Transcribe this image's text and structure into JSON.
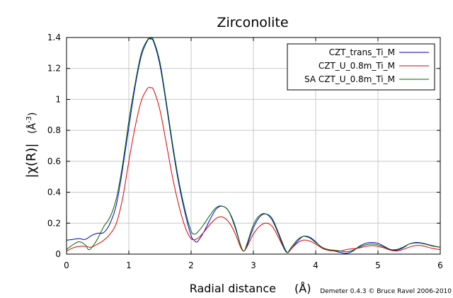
{
  "chart_data": {
    "type": "line",
    "title": "Zirconolite",
    "xlabel": "Radial distance",
    "xlabel_unit": "(Å)",
    "ylabel_main": "|χ(R)|",
    "ylabel_unit": "(Å",
    "ylabel_unit_exp": "-3",
    "ylabel_unit_close": ")",
    "xlim": [
      0,
      6
    ],
    "ylim": [
      0,
      1.4
    ],
    "xticks": [
      0,
      1,
      2,
      3,
      4,
      5,
      6
    ],
    "xtick_labels": [
      "0",
      "1",
      "2",
      "3",
      "4",
      "5",
      "6"
    ],
    "yticks": [
      0,
      0.2,
      0.4,
      0.6,
      0.8,
      1.0,
      1.2,
      1.4
    ],
    "ytick_labels": [
      "0",
      "0.2",
      "0.4",
      "0.6",
      "0.8",
      "1",
      "1.2",
      "1.4"
    ],
    "grid": true,
    "legend_position": "top-right",
    "series": [
      {
        "name": "CZT_trans_Ti_M",
        "color": "#0000cc",
        "points": [
          [
            0,
            0.09
          ],
          [
            0.1,
            0.095
          ],
          [
            0.2,
            0.1
          ],
          [
            0.3,
            0.095
          ],
          [
            0.4,
            0.12
          ],
          [
            0.5,
            0.135
          ],
          [
            0.6,
            0.14
          ],
          [
            0.7,
            0.2
          ],
          [
            0.8,
            0.32
          ],
          [
            0.9,
            0.55
          ],
          [
            1.0,
            0.82
          ],
          [
            1.1,
            1.08
          ],
          [
            1.2,
            1.28
          ],
          [
            1.3,
            1.38
          ],
          [
            1.35,
            1.39
          ],
          [
            1.4,
            1.37
          ],
          [
            1.5,
            1.22
          ],
          [
            1.6,
            0.97
          ],
          [
            1.7,
            0.7
          ],
          [
            1.8,
            0.46
          ],
          [
            1.9,
            0.27
          ],
          [
            2.0,
            0.12
          ],
          [
            2.05,
            0.09
          ],
          [
            2.1,
            0.08
          ],
          [
            2.2,
            0.14
          ],
          [
            2.3,
            0.22
          ],
          [
            2.4,
            0.29
          ],
          [
            2.5,
            0.31
          ],
          [
            2.6,
            0.28
          ],
          [
            2.7,
            0.19
          ],
          [
            2.8,
            0.05
          ],
          [
            2.85,
            0.02
          ],
          [
            2.9,
            0.06
          ],
          [
            3.0,
            0.17
          ],
          [
            3.1,
            0.24
          ],
          [
            3.2,
            0.26
          ],
          [
            3.3,
            0.23
          ],
          [
            3.4,
            0.14
          ],
          [
            3.5,
            0.04
          ],
          [
            3.55,
            0.01
          ],
          [
            3.6,
            0.03
          ],
          [
            3.7,
            0.08
          ],
          [
            3.8,
            0.115
          ],
          [
            3.9,
            0.11
          ],
          [
            4.0,
            0.08
          ],
          [
            4.1,
            0.04
          ],
          [
            4.2,
            0.025
          ],
          [
            4.3,
            0.02
          ],
          [
            4.4,
            0.01
          ],
          [
            4.5,
            0.005
          ],
          [
            4.6,
            0.02
          ],
          [
            4.7,
            0.05
          ],
          [
            4.8,
            0.07
          ],
          [
            4.9,
            0.075
          ],
          [
            5.0,
            0.07
          ],
          [
            5.1,
            0.05
          ],
          [
            5.2,
            0.03
          ],
          [
            5.3,
            0.025
          ],
          [
            5.4,
            0.04
          ],
          [
            5.5,
            0.065
          ],
          [
            5.6,
            0.075
          ],
          [
            5.7,
            0.072
          ],
          [
            5.8,
            0.062
          ],
          [
            5.9,
            0.052
          ],
          [
            6.0,
            0.045
          ]
        ]
      },
      {
        "name": "CZT_U_0.8m_Ti_M",
        "color": "#dd0000",
        "points": [
          [
            0,
            0.02
          ],
          [
            0.1,
            0.04
          ],
          [
            0.2,
            0.05
          ],
          [
            0.3,
            0.05
          ],
          [
            0.4,
            0.045
          ],
          [
            0.5,
            0.065
          ],
          [
            0.6,
            0.09
          ],
          [
            0.7,
            0.13
          ],
          [
            0.8,
            0.2
          ],
          [
            0.9,
            0.36
          ],
          [
            1.0,
            0.6
          ],
          [
            1.1,
            0.82
          ],
          [
            1.2,
            0.99
          ],
          [
            1.3,
            1.07
          ],
          [
            1.35,
            1.075
          ],
          [
            1.4,
            1.06
          ],
          [
            1.5,
            0.93
          ],
          [
            1.6,
            0.72
          ],
          [
            1.7,
            0.5
          ],
          [
            1.8,
            0.32
          ],
          [
            1.9,
            0.18
          ],
          [
            2.0,
            0.1
          ],
          [
            2.1,
            0.1
          ],
          [
            2.2,
            0.14
          ],
          [
            2.3,
            0.19
          ],
          [
            2.4,
            0.23
          ],
          [
            2.5,
            0.24
          ],
          [
            2.6,
            0.21
          ],
          [
            2.7,
            0.14
          ],
          [
            2.8,
            0.04
          ],
          [
            2.85,
            0.02
          ],
          [
            2.9,
            0.05
          ],
          [
            3.0,
            0.13
          ],
          [
            3.1,
            0.18
          ],
          [
            3.2,
            0.2
          ],
          [
            3.3,
            0.18
          ],
          [
            3.4,
            0.11
          ],
          [
            3.5,
            0.03
          ],
          [
            3.55,
            0.01
          ],
          [
            3.6,
            0.03
          ],
          [
            3.7,
            0.07
          ],
          [
            3.8,
            0.09
          ],
          [
            3.9,
            0.085
          ],
          [
            4.0,
            0.065
          ],
          [
            4.1,
            0.04
          ],
          [
            4.2,
            0.025
          ],
          [
            4.3,
            0.02
          ],
          [
            4.4,
            0.02
          ],
          [
            4.5,
            0.03
          ],
          [
            4.6,
            0.035
          ],
          [
            4.7,
            0.04
          ],
          [
            4.8,
            0.05
          ],
          [
            4.9,
            0.055
          ],
          [
            5.0,
            0.05
          ],
          [
            5.1,
            0.04
          ],
          [
            5.2,
            0.025
          ],
          [
            5.3,
            0.02
          ],
          [
            5.4,
            0.03
          ],
          [
            5.5,
            0.045
          ],
          [
            5.6,
            0.055
          ],
          [
            5.7,
            0.055
          ],
          [
            5.8,
            0.045
          ],
          [
            5.9,
            0.035
          ],
          [
            6.0,
            0.03
          ]
        ]
      },
      {
        "name": "SA CZT_U_0.8m_Ti_M",
        "color": "#006600",
        "points": [
          [
            0,
            0.03
          ],
          [
            0.1,
            0.06
          ],
          [
            0.2,
            0.08
          ],
          [
            0.3,
            0.06
          ],
          [
            0.35,
            0.03
          ],
          [
            0.4,
            0.04
          ],
          [
            0.5,
            0.1
          ],
          [
            0.6,
            0.18
          ],
          [
            0.7,
            0.24
          ],
          [
            0.8,
            0.36
          ],
          [
            0.9,
            0.58
          ],
          [
            1.0,
            0.86
          ],
          [
            1.1,
            1.1
          ],
          [
            1.2,
            1.3
          ],
          [
            1.3,
            1.385
          ],
          [
            1.35,
            1.395
          ],
          [
            1.4,
            1.38
          ],
          [
            1.5,
            1.24
          ],
          [
            1.6,
            0.99
          ],
          [
            1.7,
            0.72
          ],
          [
            1.8,
            0.48
          ],
          [
            1.9,
            0.29
          ],
          [
            2.0,
            0.15
          ],
          [
            2.05,
            0.13
          ],
          [
            2.1,
            0.14
          ],
          [
            2.2,
            0.19
          ],
          [
            2.3,
            0.25
          ],
          [
            2.4,
            0.3
          ],
          [
            2.5,
            0.31
          ],
          [
            2.6,
            0.28
          ],
          [
            2.7,
            0.18
          ],
          [
            2.8,
            0.05
          ],
          [
            2.85,
            0.02
          ],
          [
            2.9,
            0.07
          ],
          [
            3.0,
            0.19
          ],
          [
            3.1,
            0.25
          ],
          [
            3.2,
            0.26
          ],
          [
            3.3,
            0.22
          ],
          [
            3.4,
            0.13
          ],
          [
            3.5,
            0.03
          ],
          [
            3.55,
            0.01
          ],
          [
            3.6,
            0.04
          ],
          [
            3.7,
            0.09
          ],
          [
            3.8,
            0.115
          ],
          [
            3.9,
            0.105
          ],
          [
            4.0,
            0.075
          ],
          [
            4.1,
            0.045
          ],
          [
            4.2,
            0.03
          ],
          [
            4.3,
            0.025
          ],
          [
            4.4,
            0.02
          ],
          [
            4.5,
            0.015
          ],
          [
            4.6,
            0.025
          ],
          [
            4.7,
            0.045
          ],
          [
            4.8,
            0.06
          ],
          [
            4.9,
            0.065
          ],
          [
            5.0,
            0.06
          ],
          [
            5.1,
            0.045
          ],
          [
            5.2,
            0.03
          ],
          [
            5.3,
            0.03
          ],
          [
            5.4,
            0.045
          ],
          [
            5.5,
            0.065
          ],
          [
            5.6,
            0.072
          ],
          [
            5.7,
            0.07
          ],
          [
            5.8,
            0.06
          ],
          [
            5.9,
            0.05
          ],
          [
            6.0,
            0.045
          ]
        ]
      }
    ]
  },
  "credit": "Demeter 0.4.3 © Bruce Ravel 2006-2010"
}
